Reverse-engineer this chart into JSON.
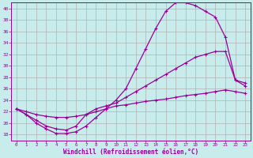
{
  "xlabel": "Windchill (Refroidissement éolien,°C)",
  "background_color": "#c8ecec",
  "grid_color": "#b0b0b0",
  "line_color": "#990099",
  "xlim": [
    -0.5,
    23.5
  ],
  "ylim": [
    17,
    41
  ],
  "yticks": [
    18,
    20,
    22,
    24,
    26,
    28,
    30,
    32,
    34,
    36,
    38,
    40
  ],
  "xticks": [
    0,
    1,
    2,
    3,
    4,
    5,
    6,
    7,
    8,
    9,
    10,
    11,
    12,
    13,
    14,
    15,
    16,
    17,
    18,
    19,
    20,
    21,
    22,
    23
  ],
  "series1_x": [
    0,
    1,
    2,
    3,
    4,
    5,
    6,
    7,
    8,
    9,
    10,
    11,
    12,
    13,
    14,
    15,
    16,
    17,
    18,
    19,
    20,
    21,
    22,
    23
  ],
  "series1_y": [
    22.5,
    21.5,
    20.0,
    19.0,
    18.2,
    18.2,
    18.5,
    19.5,
    21.0,
    22.5,
    24.0,
    26.0,
    29.5,
    33.0,
    36.5,
    39.5,
    41.0,
    41.0,
    40.5,
    39.5,
    38.5,
    35.0,
    27.5,
    26.5
  ],
  "series2_x": [
    0,
    1,
    2,
    3,
    4,
    5,
    6,
    7,
    8,
    9,
    10,
    11,
    12,
    13,
    14,
    15,
    16,
    17,
    18,
    19,
    20,
    21,
    22,
    23
  ],
  "series2_y": [
    22.5,
    21.5,
    20.5,
    19.5,
    19.0,
    18.8,
    19.5,
    21.5,
    22.5,
    23.0,
    23.5,
    24.5,
    25.5,
    26.5,
    27.5,
    28.5,
    29.5,
    30.5,
    31.5,
    32.0,
    32.5,
    32.5,
    27.5,
    27.0
  ],
  "series3_x": [
    0,
    1,
    2,
    3,
    4,
    5,
    6,
    7,
    8,
    9,
    10,
    11,
    12,
    13,
    14,
    15,
    16,
    17,
    18,
    19,
    20,
    21,
    22,
    23
  ],
  "series3_y": [
    22.5,
    22.0,
    21.5,
    21.2,
    21.0,
    21.0,
    21.2,
    21.5,
    22.0,
    22.5,
    23.0,
    23.2,
    23.5,
    23.8,
    24.0,
    24.2,
    24.5,
    24.8,
    25.0,
    25.2,
    25.5,
    25.8,
    25.5,
    25.2
  ]
}
